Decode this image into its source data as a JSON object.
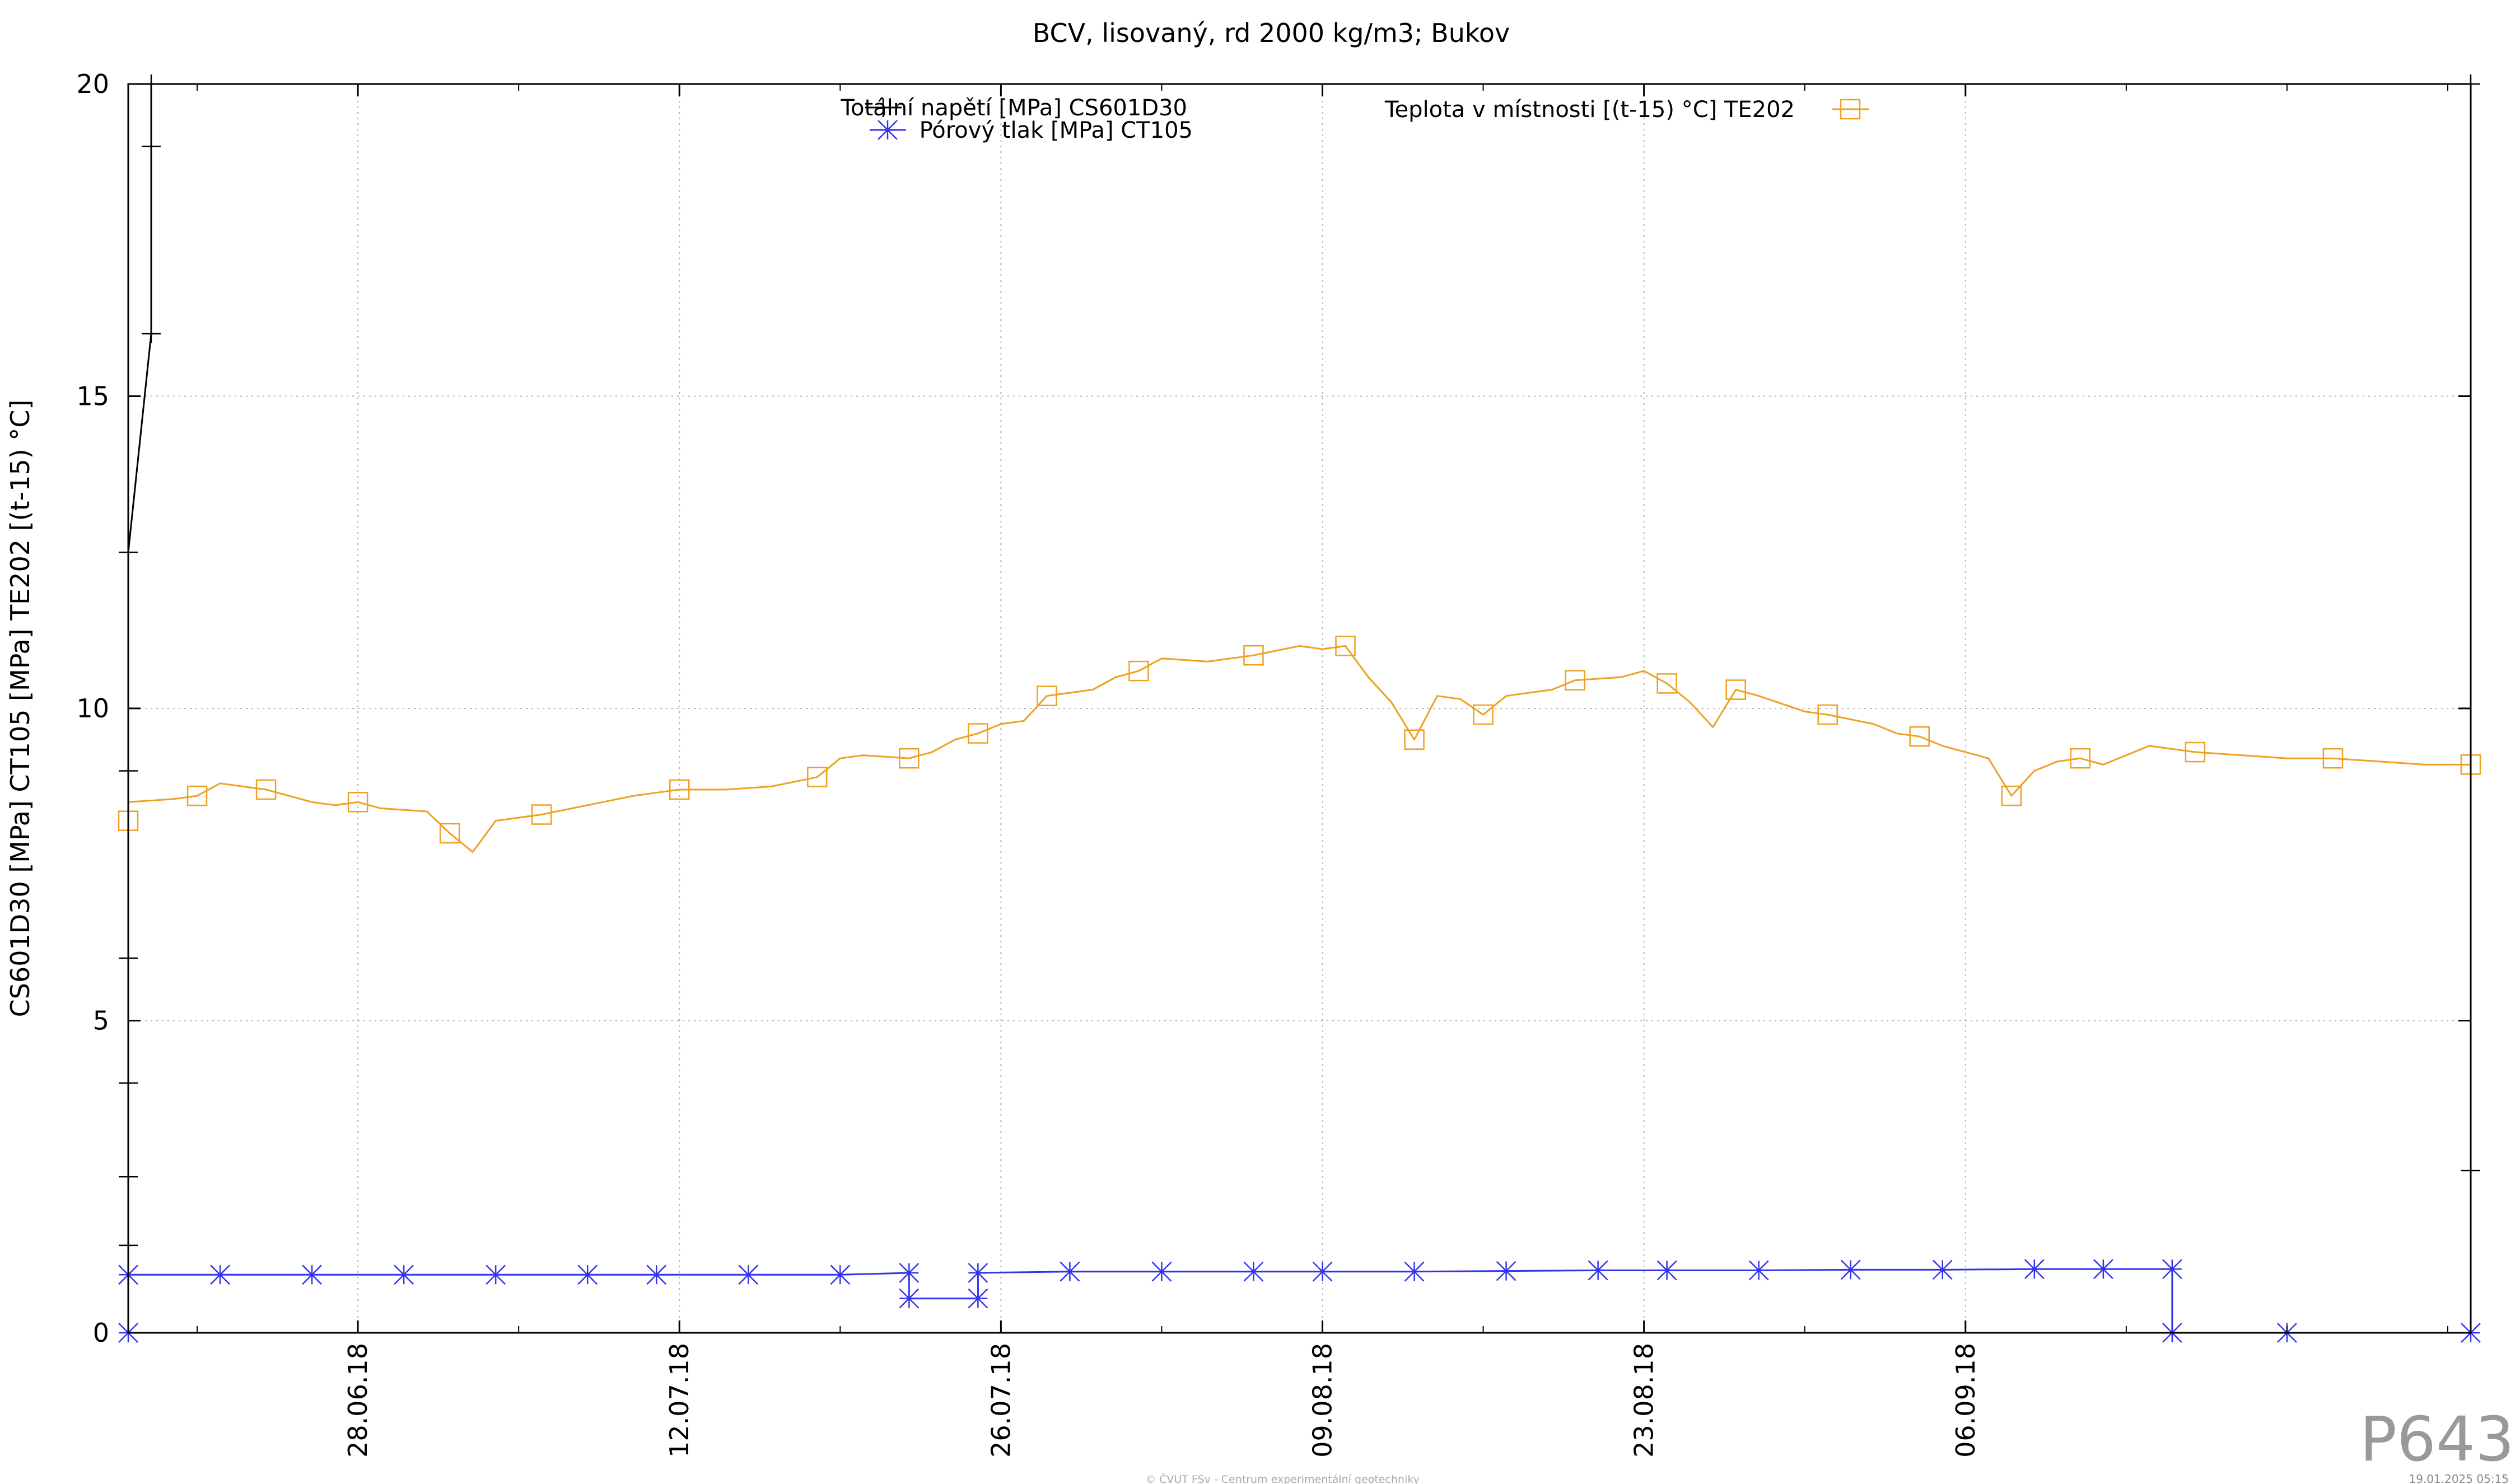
{
  "chart_data": {
    "type": "line",
    "title": "BCV, lisovaný, rd 2000 kg/m3; Bukov",
    "ylabel": "CS601D30 [MPa] CT105 [MPa] TE202 [(t-15) °C]",
    "xlabel": "",
    "ylim": [
      0,
      20
    ],
    "yticks": [
      "0",
      "5",
      "10",
      "15",
      "20"
    ],
    "xlim": [
      "2018-06-18",
      "2018-09-28"
    ],
    "xticks": [
      {
        "date": "2018-06-28",
        "label": "28.06.18"
      },
      {
        "date": "2018-07-12",
        "label": "12.07.18"
      },
      {
        "date": "2018-07-26",
        "label": "26.07.18"
      },
      {
        "date": "2018-08-09",
        "label": "09.08.18"
      },
      {
        "date": "2018-08-23",
        "label": "23.08.18"
      },
      {
        "date": "2018-09-06",
        "label": "06.09.18"
      }
    ],
    "grid": true,
    "legend_position": "top",
    "series": [
      {
        "name": "Totální napětí [MPa] CS601D30",
        "color": "#000000",
        "marker": "plus",
        "points": [
          [
            "2018-06-18",
            1.4
          ],
          [
            "2018-06-18",
            2.5
          ],
          [
            "2018-06-18",
            4.0
          ],
          [
            "2018-06-18",
            6.0
          ],
          [
            "2018-06-18",
            9.0
          ],
          [
            "2018-06-18",
            12.5
          ],
          [
            "2018-06-19",
            16.0
          ],
          [
            "2018-06-19",
            19.0
          ],
          [
            "2018-06-19",
            20.0
          ]
        ],
        "points_end": [
          [
            "2018-09-28",
            20.0
          ],
          [
            "2018-09-28",
            2.6
          ]
        ]
      },
      {
        "name": "Pórový tlak [MPa] CT105",
        "color": "#3333ee",
        "marker": "star",
        "points": [
          [
            "2018-06-18",
            0.0
          ],
          [
            "2018-06-18",
            0.93
          ],
          [
            "2018-06-22",
            0.93
          ],
          [
            "2018-06-26",
            0.93
          ],
          [
            "2018-06-30",
            0.93
          ],
          [
            "2018-07-04",
            0.93
          ],
          [
            "2018-07-08",
            0.93
          ],
          [
            "2018-07-11",
            0.93
          ],
          [
            "2018-07-15",
            0.93
          ],
          [
            "2018-07-19",
            0.93
          ],
          [
            "2018-07-22",
            0.96
          ],
          [
            "2018-07-22",
            0.55
          ],
          [
            "2018-07-25",
            0.55
          ],
          [
            "2018-07-25",
            0.96
          ],
          [
            "2018-07-29",
            0.98
          ],
          [
            "2018-08-02",
            0.98
          ],
          [
            "2018-08-06",
            0.98
          ],
          [
            "2018-08-09",
            0.98
          ],
          [
            "2018-08-13",
            0.98
          ],
          [
            "2018-08-17",
            0.99
          ],
          [
            "2018-08-21",
            1.0
          ],
          [
            "2018-08-24",
            1.0
          ],
          [
            "2018-08-28",
            1.0
          ],
          [
            "2018-09-01",
            1.01
          ],
          [
            "2018-09-05",
            1.01
          ],
          [
            "2018-09-09",
            1.02
          ],
          [
            "2018-09-12",
            1.02
          ],
          [
            "2018-09-15",
            1.02
          ],
          [
            "2018-09-15",
            0.0
          ],
          [
            "2018-09-20",
            0.0
          ],
          [
            "2018-09-28",
            0.0
          ]
        ]
      },
      {
        "name": "Teplota v místnosti [(t-15) °C] TE202",
        "color": "#f0a020",
        "marker": "square",
        "points": [
          [
            "2018-06-18",
            8.2
          ],
          [
            "2018-06-18",
            8.5
          ],
          [
            "2018-06-20",
            8.55
          ],
          [
            "2018-06-21",
            8.6
          ],
          [
            "2018-06-22",
            8.8
          ],
          [
            "2018-06-23",
            8.75
          ],
          [
            "2018-06-24",
            8.7
          ],
          [
            "2018-06-26",
            8.5
          ],
          [
            "2018-06-27",
            8.45
          ],
          [
            "2018-06-28",
            8.5
          ],
          [
            "2018-06-29",
            8.4
          ],
          [
            "2018-07-01",
            8.35
          ],
          [
            "2018-07-02",
            8.0
          ],
          [
            "2018-07-03",
            7.7
          ],
          [
            "2018-07-04",
            8.2
          ],
          [
            "2018-07-06",
            8.3
          ],
          [
            "2018-07-08",
            8.45
          ],
          [
            "2018-07-10",
            8.6
          ],
          [
            "2018-07-12",
            8.7
          ],
          [
            "2018-07-14",
            8.7
          ],
          [
            "2018-07-16",
            8.75
          ],
          [
            "2018-07-18",
            8.9
          ],
          [
            "2018-07-19",
            9.2
          ],
          [
            "2018-07-20",
            9.25
          ],
          [
            "2018-07-22",
            9.2
          ],
          [
            "2018-07-23",
            9.3
          ],
          [
            "2018-07-24",
            9.5
          ],
          [
            "2018-07-25",
            9.6
          ],
          [
            "2018-07-26",
            9.75
          ],
          [
            "2018-07-27",
            9.8
          ],
          [
            "2018-07-28",
            10.2
          ],
          [
            "2018-07-30",
            10.3
          ],
          [
            "2018-07-31",
            10.5
          ],
          [
            "2018-08-01",
            10.6
          ],
          [
            "2018-08-02",
            10.8
          ],
          [
            "2018-08-04",
            10.75
          ],
          [
            "2018-08-06",
            10.85
          ],
          [
            "2018-08-08",
            11.0
          ],
          [
            "2018-08-09",
            10.95
          ],
          [
            "2018-08-10",
            11.0
          ],
          [
            "2018-08-11",
            10.5
          ],
          [
            "2018-08-12",
            10.1
          ],
          [
            "2018-08-13",
            9.5
          ],
          [
            "2018-08-14",
            10.2
          ],
          [
            "2018-08-15",
            10.15
          ],
          [
            "2018-08-16",
            9.9
          ],
          [
            "2018-08-17",
            10.2
          ],
          [
            "2018-08-19",
            10.3
          ],
          [
            "2018-08-20",
            10.45
          ],
          [
            "2018-08-22",
            10.5
          ],
          [
            "2018-08-23",
            10.6
          ],
          [
            "2018-08-24",
            10.4
          ],
          [
            "2018-08-25",
            10.1
          ],
          [
            "2018-08-26",
            9.7
          ],
          [
            "2018-08-27",
            10.3
          ],
          [
            "2018-08-28",
            10.2
          ],
          [
            "2018-08-30",
            9.95
          ],
          [
            "2018-08-31",
            9.9
          ],
          [
            "2018-09-02",
            9.75
          ],
          [
            "2018-09-03",
            9.6
          ],
          [
            "2018-09-04",
            9.55
          ],
          [
            "2018-09-05",
            9.4
          ],
          [
            "2018-09-07",
            9.2
          ],
          [
            "2018-09-08",
            8.6
          ],
          [
            "2018-09-09",
            9.0
          ],
          [
            "2018-09-10",
            9.15
          ],
          [
            "2018-09-11",
            9.2
          ],
          [
            "2018-09-12",
            9.1
          ],
          [
            "2018-09-14",
            9.4
          ],
          [
            "2018-09-16",
            9.3
          ],
          [
            "2018-09-18",
            9.25
          ],
          [
            "2018-09-20",
            9.2
          ],
          [
            "2018-09-22",
            9.2
          ],
          [
            "2018-09-24",
            9.15
          ],
          [
            "2018-09-26",
            9.1
          ],
          [
            "2018-09-28",
            9.1
          ]
        ]
      }
    ]
  },
  "watermark": {
    "code": "P643",
    "copyright": "© ČVUT FSv - Centrum experimentální geotechniky",
    "timestamp": "19.01.2025 05:15"
  }
}
